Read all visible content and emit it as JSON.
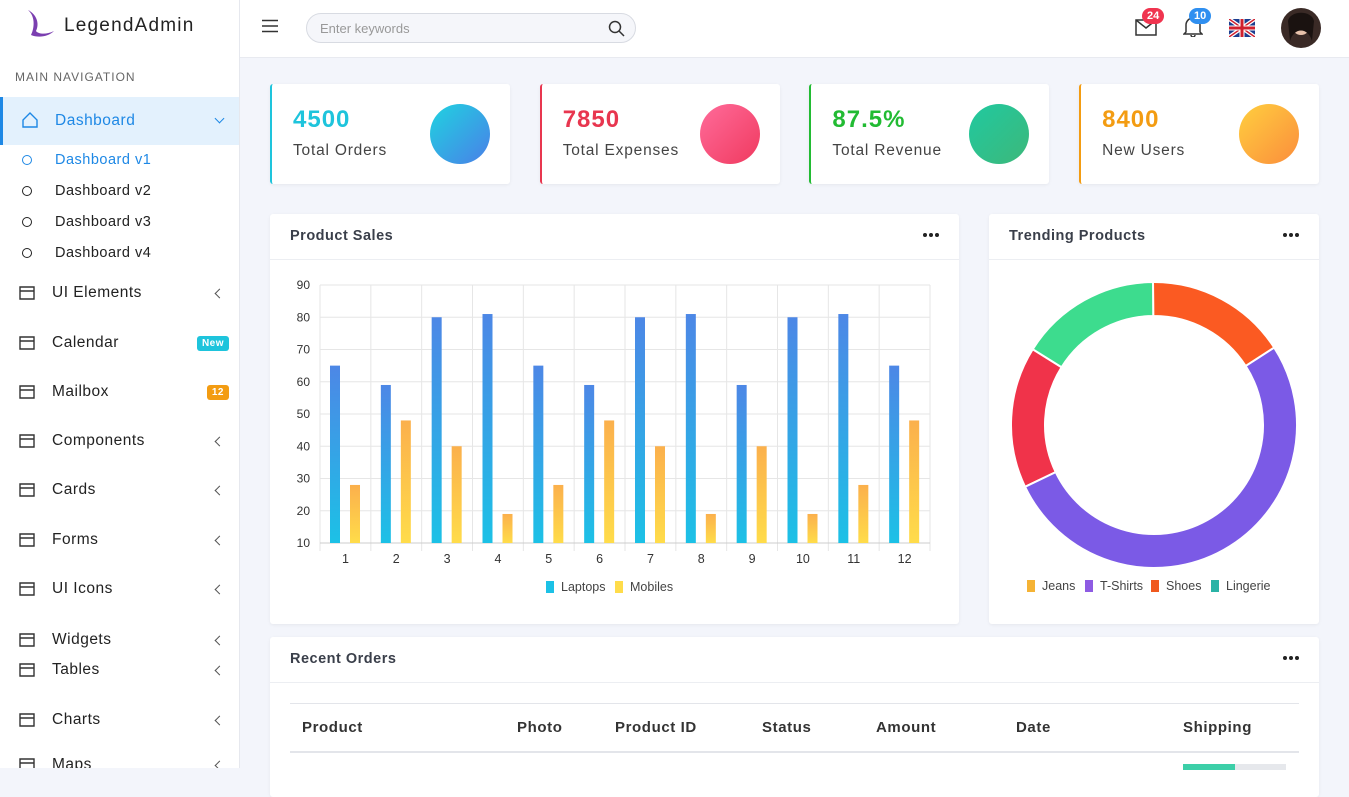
{
  "brand": "LegendAdmin",
  "search": {
    "placeholder": "Enter keywords"
  },
  "notifications": {
    "mail": "24",
    "bell": "10"
  },
  "sidebar": {
    "heading": "MAIN NAVIGATION",
    "items": [
      {
        "label": "Dashboard",
        "children": [
          "Dashboard v1",
          "Dashboard v2",
          "Dashboard v3",
          "Dashboard v4"
        ]
      },
      {
        "label": "UI Elements"
      },
      {
        "label": "Calendar",
        "badge": "New"
      },
      {
        "label": "Mailbox",
        "badge": "12"
      },
      {
        "label": "Components"
      },
      {
        "label": "Cards"
      },
      {
        "label": "Forms"
      },
      {
        "label": "UI Icons"
      },
      {
        "label": "Widgets"
      },
      {
        "label": "Tables"
      },
      {
        "label": "Charts"
      },
      {
        "label": "Maps"
      }
    ]
  },
  "stats": [
    {
      "value": "4500",
      "label": "Total Orders",
      "color": "#1ec4dc"
    },
    {
      "value": "7850",
      "label": "Total Expenses",
      "color": "#e8364f"
    },
    {
      "value": "87.5%",
      "label": "Total Revenue",
      "color": "#22bb33"
    },
    {
      "value": "8400",
      "label": "New Users",
      "color": "#f39c12"
    }
  ],
  "product_sales": {
    "title": "Product Sales",
    "chart": {
      "type": "bar",
      "categories": [
        "1",
        "2",
        "3",
        "4",
        "5",
        "6",
        "7",
        "8",
        "9",
        "10",
        "11",
        "12"
      ],
      "series": [
        {
          "name": "Laptops",
          "color": "#1cc1e6",
          "color_top": "#4d87e6",
          "values": [
            65,
            59,
            80,
            81,
            65,
            59,
            80,
            81,
            59,
            80,
            81,
            65
          ]
        },
        {
          "name": "Mobiles",
          "color": "#ffdc4a",
          "color_top": "#fbb04c",
          "values": [
            28,
            48,
            40,
            19,
            28,
            48,
            40,
            19,
            40,
            19,
            28,
            48
          ]
        }
      ],
      "ylim": [
        10,
        90
      ],
      "yticks": [
        10,
        20,
        30,
        40,
        50,
        60,
        70,
        80,
        90
      ],
      "grid": true
    }
  },
  "trending": {
    "title": "Trending Products",
    "chart": {
      "type": "donut",
      "categories": [
        "Jeans",
        "T-Shirts",
        "Shoes",
        "Lingerie"
      ],
      "values": [
        16,
        52,
        16,
        16
      ],
      "colors": [
        "#f5b335",
        "#8e5be3",
        "#f0591e",
        "#2ab3a6"
      ],
      "arc_colors": [
        "#f0334a",
        "#7b5ae6",
        "#fb5a22",
        "#3ddc8e"
      ]
    }
  },
  "recent_orders": {
    "title": "Recent Orders",
    "columns": [
      "Product",
      "Photo",
      "Product ID",
      "Status",
      "Amount",
      "Date",
      "Shipping"
    ]
  }
}
